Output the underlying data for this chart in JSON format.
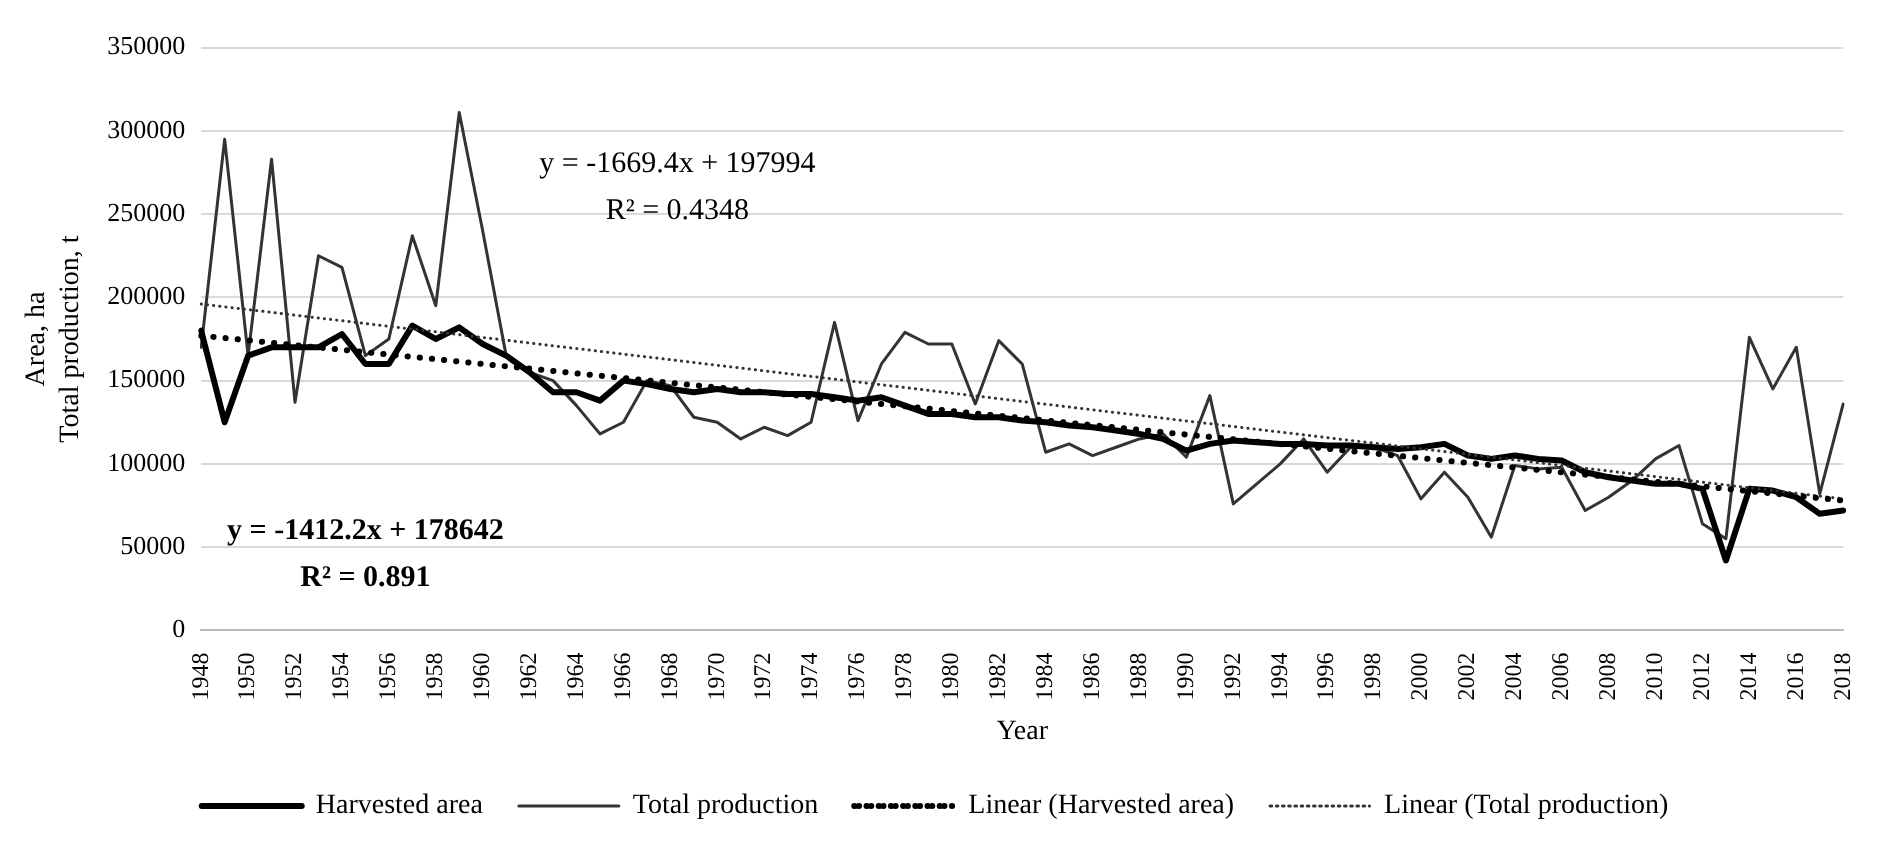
{
  "chart_data": {
    "type": "line",
    "xlabel": "Year",
    "ylabel": "Area, ha\nTotal production, t",
    "categories": [
      "1948",
      null,
      "1950",
      null,
      "1952",
      null,
      "1954",
      null,
      "1956",
      null,
      "1958",
      null,
      "1960",
      null,
      "1962",
      null,
      "1964",
      null,
      "1966",
      null,
      "1968",
      null,
      "1970",
      null,
      "1972",
      null,
      "1974",
      null,
      "1976",
      null,
      "1978",
      null,
      "1980",
      null,
      "1982",
      null,
      "1984",
      null,
      "1986",
      null,
      "1988",
      null,
      "1990",
      null,
      "1992",
      null,
      "1994",
      null,
      "1996",
      null,
      "1998",
      null,
      "2000",
      null,
      "2002",
      null,
      "2004",
      null,
      "2006",
      null,
      "2008",
      null,
      "2010",
      null,
      "2012",
      null,
      "2014",
      null,
      "2016",
      null,
      "2018"
    ],
    "ylim": [
      0,
      350000
    ],
    "yticks": [
      0,
      50000,
      100000,
      150000,
      200000,
      250000,
      300000,
      350000
    ],
    "grid": "y",
    "legend": "bottom",
    "marker": "none",
    "series": [
      {
        "name": "Harvested area",
        "color": "#000000",
        "line_style": "solid",
        "values": [
          180000,
          125000,
          165000,
          170000,
          170000,
          170000,
          178000,
          160000,
          160000,
          183000,
          175000,
          182000,
          172000,
          165000,
          155000,
          143000,
          143000,
          138000,
          150000,
          148000,
          145000,
          143000,
          145000,
          143000,
          143000,
          142000,
          142000,
          140000,
          138000,
          140000,
          135000,
          130000,
          130000,
          128000,
          128000,
          126000,
          125000,
          123000,
          122000,
          120000,
          118000,
          115000,
          108000,
          112000,
          114000,
          113000,
          112000,
          112000,
          111000,
          111000,
          110000,
          109000,
          110000,
          112000,
          105000,
          103000,
          105000,
          103000,
          102000,
          95000,
          92000,
          90000,
          88000,
          88000,
          85000,
          42000,
          85000,
          84000,
          80000,
          70000,
          72000
        ]
      },
      {
        "name": "Total production",
        "color": "#333333",
        "line_style": "solid",
        "values": [
          170000,
          295000,
          165000,
          283000,
          137000,
          225000,
          218000,
          165000,
          175000,
          237000,
          195000,
          311000,
          240000,
          165000,
          155000,
          150000,
          135000,
          118000,
          125000,
          150000,
          147000,
          128000,
          125000,
          115000,
          122000,
          117000,
          125000,
          185000,
          126000,
          160000,
          179000,
          172000,
          172000,
          136000,
          174000,
          160000,
          107000,
          112000,
          105000,
          110000,
          115000,
          118000,
          104000,
          141000,
          76000,
          88000,
          100000,
          115000,
          95000,
          110000,
          110000,
          105000,
          79000,
          95000,
          80000,
          56000,
          99000,
          97000,
          98000,
          72000,
          80000,
          90000,
          103000,
          111000,
          64000,
          55000,
          176000,
          145000,
          170000,
          82000,
          136000
        ]
      },
      {
        "name": "Linear (Harvested area)",
        "type": "line",
        "color": "#000000",
        "line_style": "dotted",
        "values": [
          177000,
          null,
          null,
          null,
          null,
          null,
          null,
          null,
          null,
          null,
          null,
          null,
          null,
          null,
          null,
          null,
          null,
          null,
          null,
          null,
          null,
          null,
          null,
          null,
          null,
          null,
          null,
          null,
          null,
          null,
          null,
          null,
          null,
          null,
          null,
          null,
          null,
          null,
          null,
          null,
          null,
          null,
          null,
          null,
          null,
          null,
          null,
          null,
          null,
          null,
          null,
          null,
          null,
          null,
          null,
          null,
          null,
          null,
          null,
          null,
          null,
          null,
          null,
          null,
          null,
          null,
          null,
          null,
          null,
          null,
          78000
        ]
      },
      {
        "name": "Linear (Total production)",
        "type": "line",
        "color": "#333333",
        "line_style": "dotted",
        "values": [
          196000,
          null,
          null,
          null,
          null,
          null,
          null,
          null,
          null,
          null,
          null,
          null,
          null,
          null,
          null,
          null,
          null,
          null,
          null,
          null,
          null,
          null,
          null,
          null,
          null,
          null,
          null,
          null,
          null,
          null,
          null,
          null,
          null,
          null,
          null,
          null,
          null,
          null,
          null,
          null,
          null,
          null,
          null,
          null,
          null,
          null,
          null,
          null,
          null,
          null,
          null,
          null,
          null,
          null,
          null,
          null,
          null,
          null,
          null,
          null,
          null,
          null,
          null,
          null,
          null,
          null,
          null,
          null,
          null,
          null,
          79000
        ]
      }
    ],
    "annotations": [
      "y = -1669.4x + 197994",
      "R² = 0.4348",
      "y = -1412.2x + 178642",
      "R² = 0.891"
    ]
  }
}
